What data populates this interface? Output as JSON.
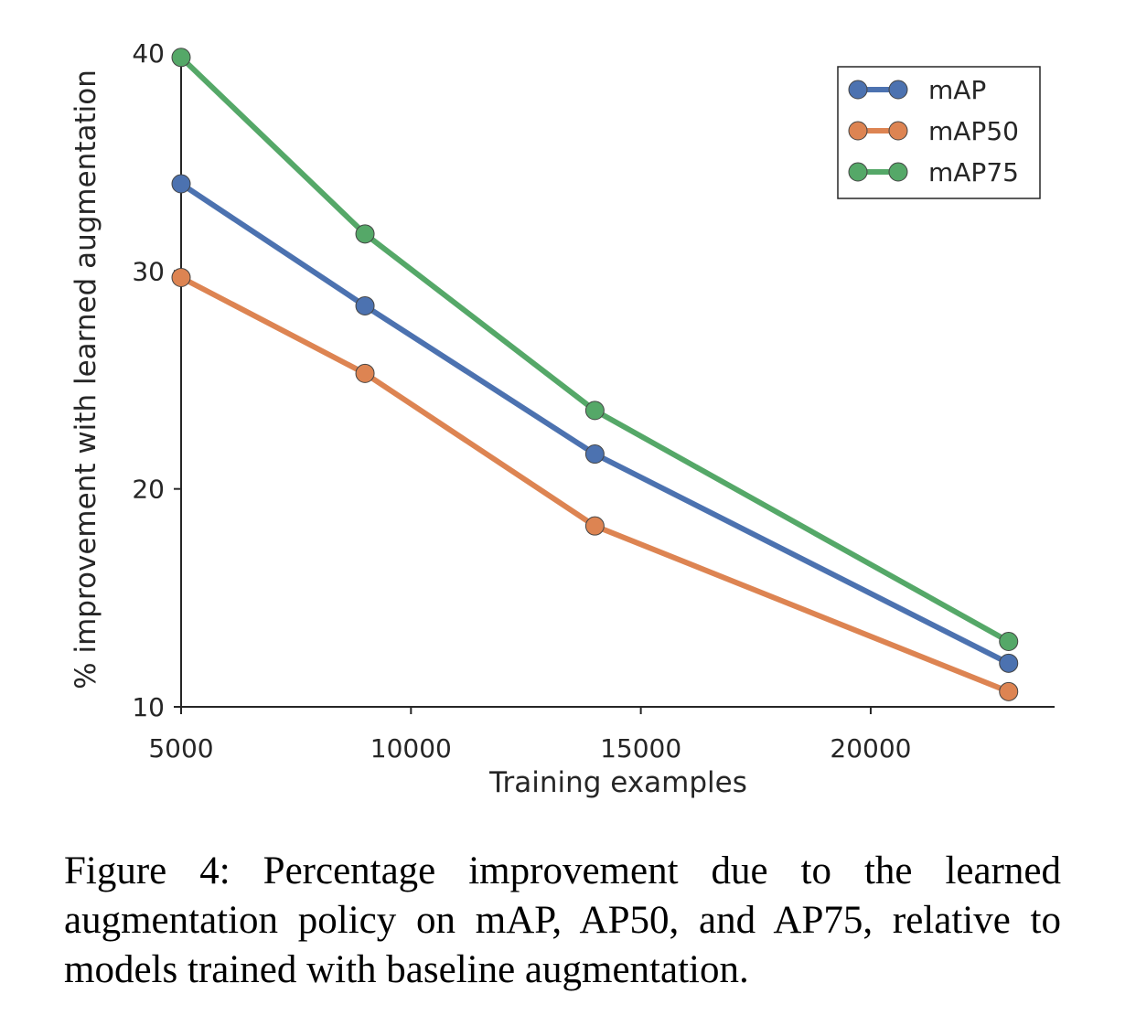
{
  "chart_data": {
    "type": "line",
    "title": "",
    "xlabel": "Training examples",
    "ylabel": "% improvement with learned augmentation",
    "xlim": [
      5000,
      24000
    ],
    "ylim": [
      10,
      40
    ],
    "xticks": [
      5000,
      10000,
      15000,
      20000
    ],
    "yticks": [
      10,
      20,
      30,
      40
    ],
    "x": [
      5000,
      9000,
      14000,
      23000
    ],
    "series": [
      {
        "name": "mAP",
        "color": "#4c72b0",
        "values": [
          34.0,
          28.4,
          21.6,
          12.0
        ]
      },
      {
        "name": "mAP50",
        "color": "#dd8452",
        "values": [
          29.7,
          25.3,
          18.3,
          10.7
        ]
      },
      {
        "name": "mAP75",
        "color": "#55a868",
        "values": [
          39.8,
          31.7,
          23.6,
          13.0
        ]
      }
    ],
    "legend_position": "top-right",
    "grid": false
  },
  "caption": "Figure 4: Percentage improvement due to the learned augmentation policy on mAP, AP50, and AP75, relative to models trained with baseline augmentation."
}
